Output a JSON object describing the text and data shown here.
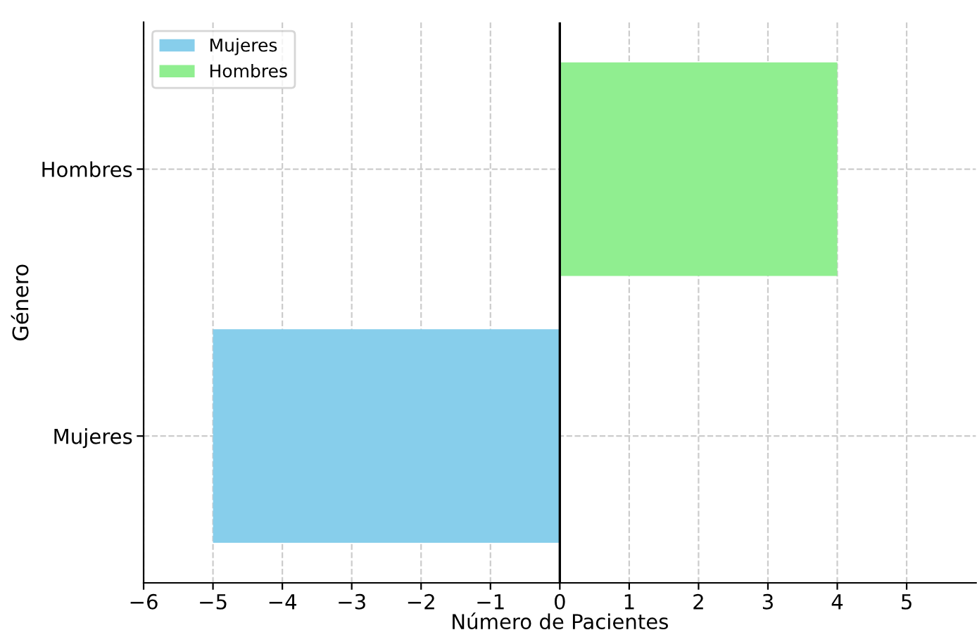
{
  "chart_data": {
    "type": "bar",
    "orientation": "horizontal",
    "xlabel": "Número de Pacientes",
    "ylabel": "Género",
    "categories": [
      "Hombres",
      "Mujeres"
    ],
    "series": [
      {
        "name": "Mujeres",
        "color": "#87ceeb",
        "values": [
          null,
          -5
        ]
      },
      {
        "name": "Hombres",
        "color": "#90ee90",
        "values": [
          4,
          null
        ]
      }
    ],
    "xlim": [
      -6,
      6
    ],
    "xticks": [
      {
        "value": -6,
        "label": "−6"
      },
      {
        "value": -5,
        "label": "−5"
      },
      {
        "value": -4,
        "label": "−4"
      },
      {
        "value": -3,
        "label": "−3"
      },
      {
        "value": -2,
        "label": "−2"
      },
      {
        "value": -1,
        "label": "−1"
      },
      0,
      1,
      2,
      3,
      4,
      5
    ],
    "ref_lines": [
      {
        "axis": "x",
        "value": 0,
        "color": "#000000"
      }
    ],
    "grid": true,
    "legend": "top left"
  }
}
